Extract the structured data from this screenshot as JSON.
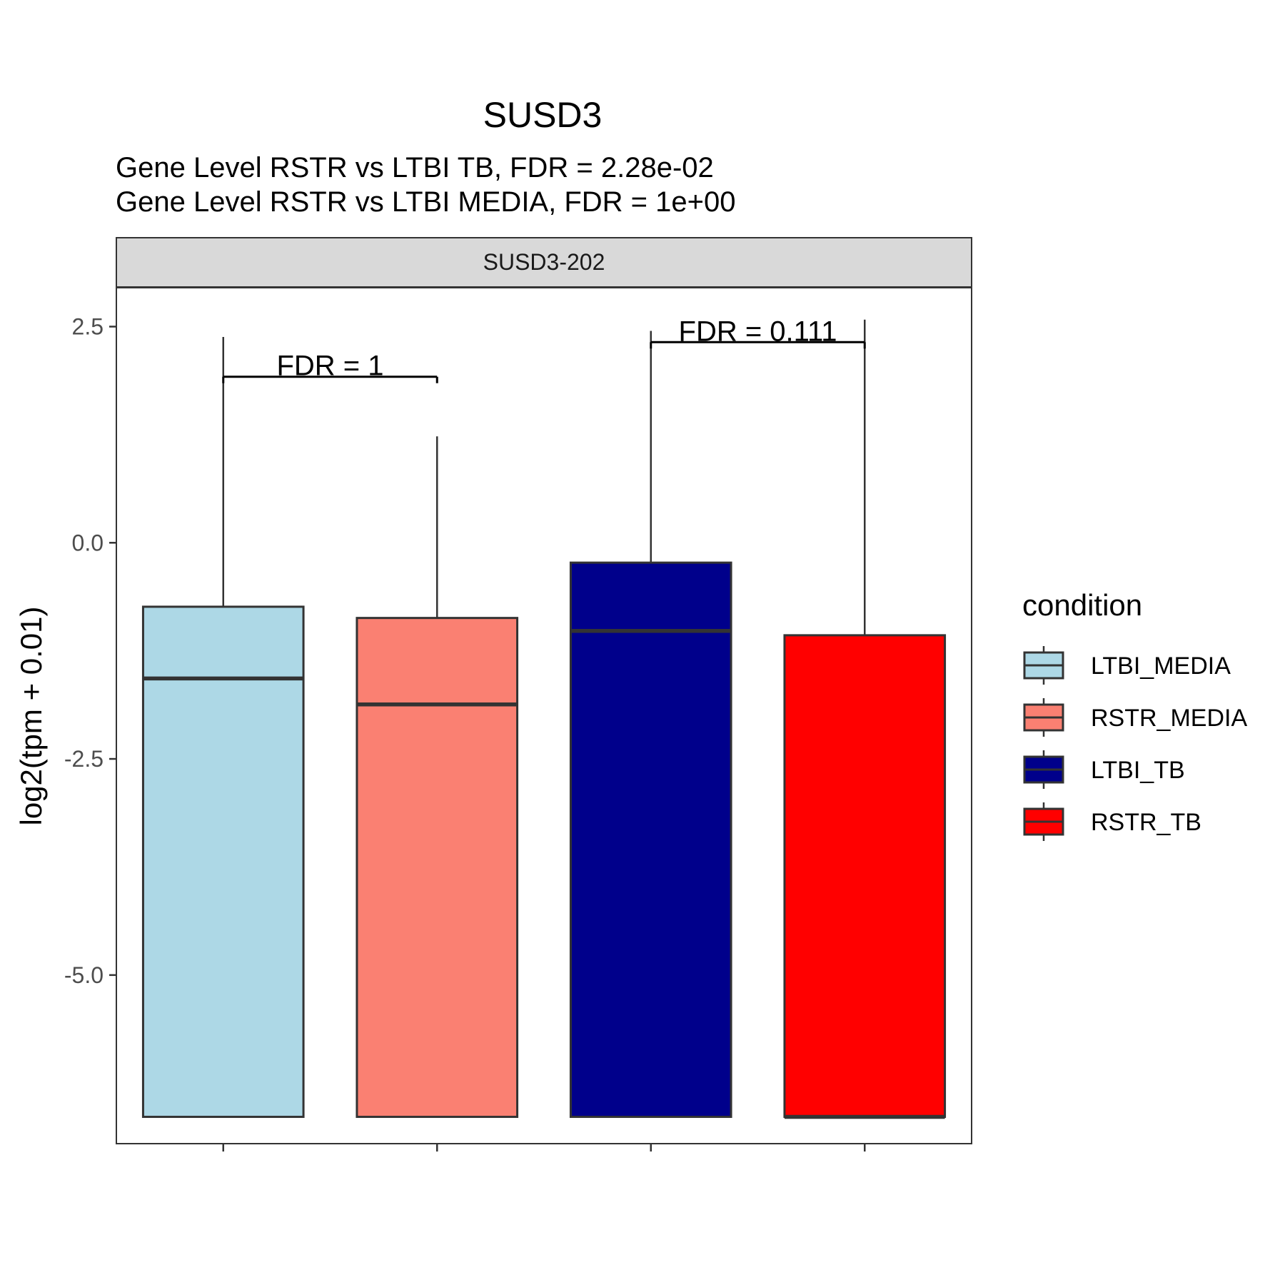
{
  "chart_data": {
    "type": "boxplot",
    "title": "SUSD3",
    "subtitle_lines": [
      "Gene Level RSTR vs LTBI TB, FDR =  2.28e-02",
      "Gene Level RSTR vs LTBI MEDIA, FDR =  1e+00"
    ],
    "facet_label": "SUSD3-202",
    "ylabel": "log2(tpm + 0.01)",
    "xlabel": "",
    "ylim": [
      -6.95,
      2.95
    ],
    "yticks": [
      2.5,
      0.0,
      -2.5,
      -5.0
    ],
    "ytick_labels": [
      "2.5",
      "0.0",
      "-2.5",
      "-5.0"
    ],
    "grid": false,
    "legend": {
      "title": "condition",
      "placement": "right",
      "entries": [
        "LTBI_MEDIA",
        "RSTR_MEDIA",
        "LTBI_TB",
        "RSTR_TB"
      ]
    },
    "series": [
      {
        "name": "LTBI_MEDIA",
        "color": "#add8e6",
        "lower_whisker": -6.64,
        "q1": -6.64,
        "median": -1.57,
        "q3": -0.74,
        "upper_whisker": 2.38
      },
      {
        "name": "RSTR_MEDIA",
        "color": "#fa8072",
        "lower_whisker": -6.64,
        "q1": -6.64,
        "median": -1.87,
        "q3": -0.87,
        "upper_whisker": 1.23
      },
      {
        "name": "LTBI_TB",
        "color": "#00008b",
        "lower_whisker": -6.64,
        "q1": -6.64,
        "median": -1.02,
        "q3": -0.23,
        "upper_whisker": 2.45
      },
      {
        "name": "RSTR_TB",
        "color": "#ff0000",
        "lower_whisker": -6.64,
        "q1": -6.64,
        "median": -6.64,
        "q3": -1.07,
        "upper_whisker": 2.58
      }
    ],
    "annotations": [
      {
        "text": "FDR =  1",
        "from": 0,
        "to": 1,
        "y": 1.92
      },
      {
        "text": "FDR =  0.111",
        "from": 2,
        "to": 3,
        "y": 2.32
      }
    ]
  }
}
